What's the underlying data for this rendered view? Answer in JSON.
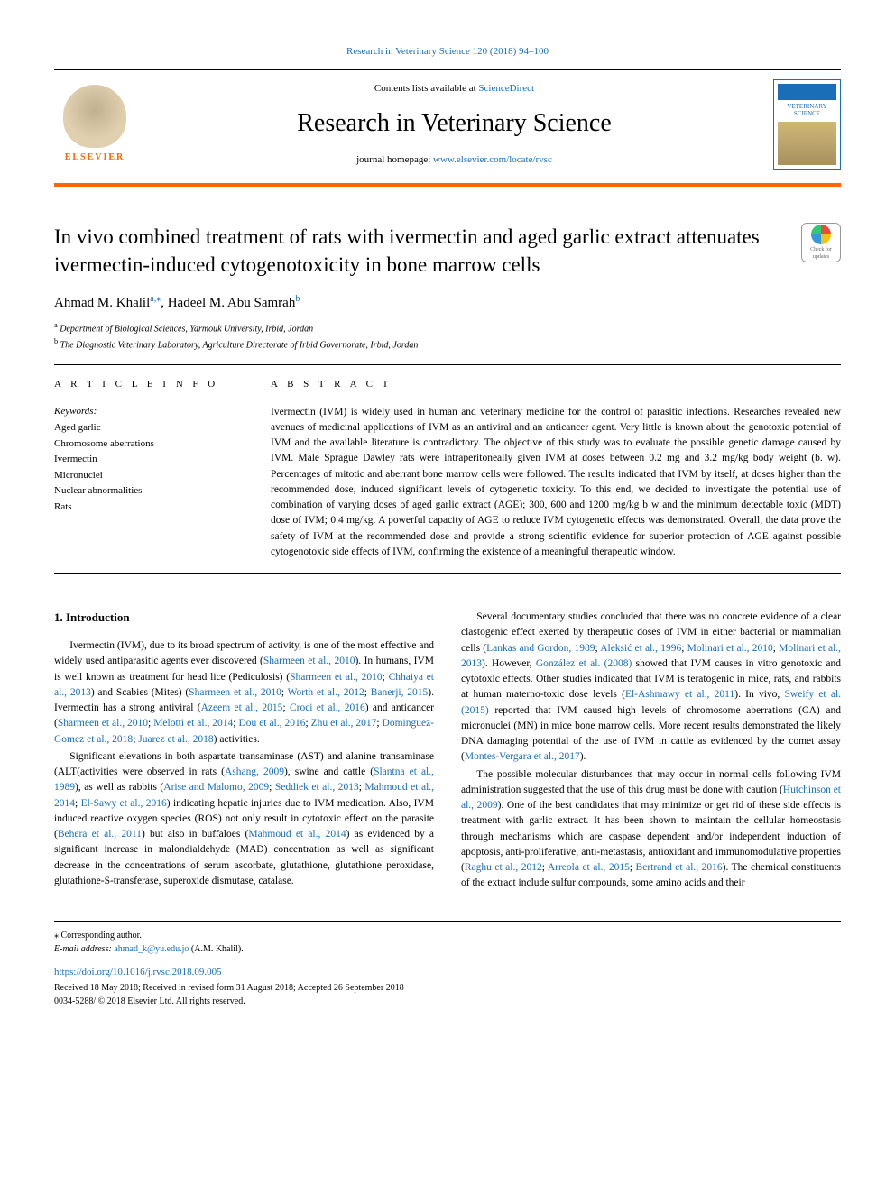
{
  "journal_ref_top": "Research in Veterinary Science 120 (2018) 94–100",
  "header": {
    "contents_prefix": "Contents lists available at ",
    "contents_link": "ScienceDirect",
    "journal_name": "Research in Veterinary Science",
    "homepage_prefix": "journal homepage: ",
    "homepage_link": "www.elsevier.com/locate/rvsc",
    "elsevier_label": "ELSEVIER",
    "cover_label_top": "VETERINARY",
    "cover_label_bottom": "SCIENCE"
  },
  "crossmark": {
    "line1": "Check for",
    "line2": "updates"
  },
  "article": {
    "title": "In vivo combined treatment of rats with ivermectin and aged garlic extract attenuates ivermectin-induced cytogenotoxicity in bone marrow cells",
    "authors_html": "Ahmad M. Khalil",
    "author1": "Ahmad M. Khalil",
    "author1_sup": "a,⁎",
    "author_sep": ", ",
    "author2": "Hadeel M. Abu Samrah",
    "author2_sup": "b",
    "affiliations": [
      {
        "sup": "a",
        "text": " Department of Biological Sciences, Yarmouk University, Irbid, Jordan"
      },
      {
        "sup": "b",
        "text": " The Diagnostic Veterinary Laboratory, Agriculture Directorate of Irbid Governorate, Irbid, Jordan"
      }
    ]
  },
  "info": {
    "heading": "A R T I C L E  I N F O",
    "keywords_label": "Keywords:",
    "keywords": [
      "Aged garlic",
      "Chromosome aberrations",
      "Ivermectin",
      "Micronuclei",
      "Nuclear abnormalities",
      "Rats"
    ]
  },
  "abstract": {
    "heading": "A B S T R A C T",
    "text": "Ivermectin (IVM) is widely used in human and veterinary medicine for the control of parasitic infections. Researches revealed new avenues of medicinal applications of IVM as an antiviral and an anticancer agent. Very little is known about the genotoxic potential of IVM and the available literature is contradictory. The objective of this study was to evaluate the possible genetic damage caused by IVM. Male Sprague Dawley rats were intraperitoneally given IVM at doses between 0.2 mg and 3.2 mg/kg body weight (b. w). Percentages of mitotic and aberrant bone marrow cells were followed. The results indicated that IVM by itself, at doses higher than the recommended dose, induced significant levels of cytogenetic toxicity. To this end, we decided to investigate the potential use of combination of varying doses of aged garlic extract (AGE); 300, 600 and 1200 mg/kg b w and the minimum detectable toxic (MDT) dose of IVM; 0.4 mg/kg. A powerful capacity of AGE to reduce IVM cytogenetic effects was demonstrated. Overall, the data prove the safety of IVM at the recommended dose and provide a strong scientific evidence for superior protection of AGE against possible cytogenotoxic side effects of IVM, confirming the existence of a meaningful therapeutic window."
  },
  "body": {
    "section_heading": "1. Introduction",
    "left_paras": [
      "Ivermectin (IVM), due to its broad spectrum of activity, is one of the most effective and widely used antiparasitic agents ever discovered (<a class='ref-link'>Sharmeen et al., 2010</a>). In humans, IVM is well known as treatment for head lice (Pediculosis) (<a class='ref-link'>Sharmeen et al., 2010</a>; <a class='ref-link'>Chhaiya et al., 2013</a>) and Scabies (Mites) (<a class='ref-link'>Sharmeen et al., 2010</a>; <a class='ref-link'>Worth et al., 2012</a>; <a class='ref-link'>Banerji, 2015</a>). Ivermectin has a strong antiviral (<a class='ref-link'>Azeem et al., 2015</a>; <a class='ref-link'>Croci et al., 2016</a>) and anticancer (<a class='ref-link'>Sharmeen et al., 2010</a>; <a class='ref-link'>Melotti et al., 2014</a>; <a class='ref-link'>Dou et al., 2016</a>; <a class='ref-link'>Zhu et al., 2017</a>; <a class='ref-link'>Dominguez-Gomez et al., 2018</a>; <a class='ref-link'>Juarez et al., 2018</a>) activities.",
      "Significant elevations in both aspartate transaminase (AST) and alanine transaminase (ALT(activities were observed in rats (<a class='ref-link'>Ashang, 2009</a>), swine and cattle (<a class='ref-link'>Slantna et al., 1989</a>), as well as rabbits (<a class='ref-link'>Arise and Malomo, 2009</a>; <a class='ref-link'>Seddiek et al., 2013</a>; <a class='ref-link'>Mahmoud et al., 2014</a>; <a class='ref-link'>El-Sawy et al., 2016</a>) indicating hepatic injuries due to IVM medication. Also, IVM induced reactive oxygen species (ROS) not only result in cytotoxic effect on the parasite (<a class='ref-link'>Behera et al., 2011</a>) but also in buffaloes (<a class='ref-link'>Mahmoud et al., 2014</a>) as evidenced by a significant increase in malondialdehyde (MAD) concentration as well as significant decrease in the concentrations of serum ascorbate, glutathione, glutathione peroxidase, glutathione-S-transferase, superoxide dismutase, catalase."
    ],
    "right_paras": [
      "Several documentary studies concluded that there was no concrete evidence of a clear clastogenic effect exerted by therapeutic doses of IVM in either bacterial or mammalian cells (<a class='ref-link'>Lankas and Gordon, 1989</a>; <a class='ref-link'>Aleksić et al., 1996</a>; <a class='ref-link'>Molinari et al., 2010</a>; <a class='ref-link'>Molinari et al., 2013</a>). However, <a class='ref-link'>González et al. (2008)</a> showed that IVM causes in vitro genotoxic and cytotoxic effects. Other studies indicated that IVM is teratogenic in mice, rats, and rabbits at human materno-toxic dose levels (<a class='ref-link'>El-Ashmawy et al., 2011</a>). In vivo, <a class='ref-link'>Sweify et al. (2015)</a> reported that IVM caused high levels of chromosome aberrations (CA) and micronuclei (MN) in mice bone marrow cells. More recent results demonstrated the likely DNA damaging potential of the use of IVM in cattle as evidenced by the comet assay (<a class='ref-link'>Montes-Vergara et al., 2017</a>).",
      "The possible molecular disturbances that may occur in normal cells following IVM administration suggested that the use of this drug must be done with caution (<a class='ref-link'>Hutchinson et al., 2009</a>). One of the best candidates that may minimize or get rid of these side effects is treatment with garlic extract. It has been shown to maintain the cellular homeostasis through mechanisms which are caspase dependent and/or independent induction of apoptosis, anti-proliferative, anti-metastasis, antioxidant and immunomodulative properties (<a class='ref-link'>Raghu et al., 2012</a>; <a class='ref-link'>Arreola et al., 2015</a>; <a class='ref-link'>Bertrand et al., 2016</a>). The chemical constituents of the extract include sulfur compounds, some amino acids and their"
    ]
  },
  "footer": {
    "corresp_marker": "⁎",
    "corresp_text": " Corresponding author.",
    "email_label": "E-mail address: ",
    "email": "ahmad_k@yu.edu.jo",
    "email_suffix": " (A.M. Khalil).",
    "doi": "https://doi.org/10.1016/j.rvsc.2018.09.005",
    "received": "Received 18 May 2018; Received in revised form 31 August 2018; Accepted 26 September 2018",
    "copyright": "0034-5288/ © 2018 Elsevier Ltd. All rights reserved."
  },
  "colors": {
    "link": "#1a6eb8",
    "orange": "#ff6600",
    "text": "#000000",
    "bg": "#ffffff"
  }
}
